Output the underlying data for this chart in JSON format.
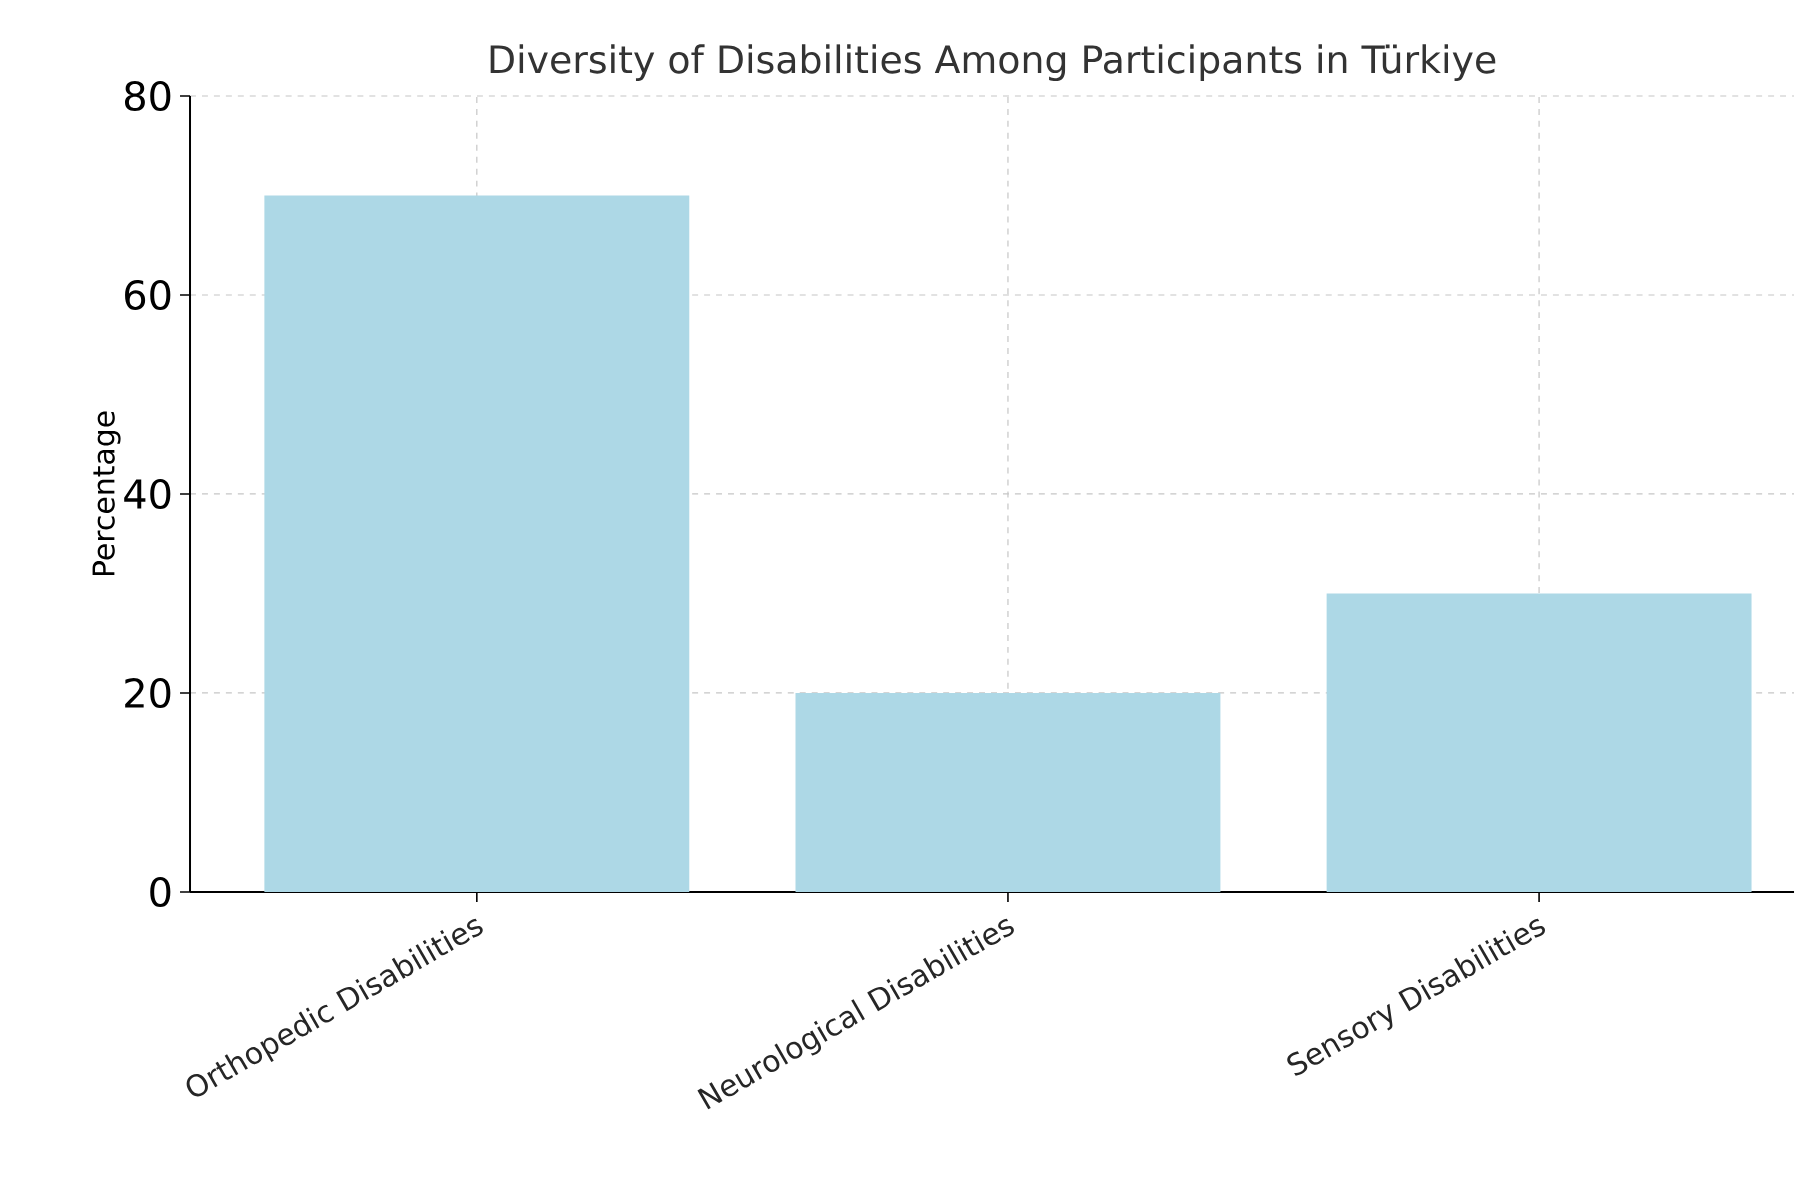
{
  "chart_data": {
    "type": "bar",
    "title": "Diversity of Disabilities Among Participants in Türkiye",
    "ylabel": "Percentage",
    "categories": [
      "Orthopedic Disabilities",
      "Neurological Disabilities",
      "Sensory Disabilities"
    ],
    "values": [
      70,
      20,
      30
    ],
    "color": "#add8e6",
    "ylim": [
      0,
      80
    ],
    "yticks": [
      0,
      20,
      40,
      60,
      80
    ],
    "grid": true
  }
}
